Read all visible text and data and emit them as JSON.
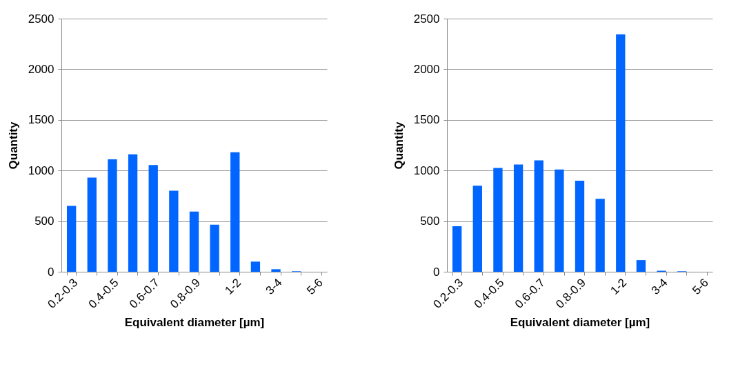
{
  "chart_data": [
    {
      "type": "bar",
      "categories": [
        "0.2-0.3",
        null,
        "0.4-0.5",
        null,
        "0.6-0.7",
        null,
        "0.8-0.9",
        null,
        "1-2",
        null,
        "3-4",
        null,
        "5-6"
      ],
      "series": [
        {
          "color": "#0066ff",
          "values": [
            650,
            930,
            1110,
            1160,
            1055,
            800,
            595,
            465,
            1180,
            100,
            25,
            5,
            0
          ]
        }
      ],
      "xlabel": "Equivalent diameter [µm]",
      "ylabel": "Quantity",
      "ylim": [
        0,
        2500
      ],
      "yticks": [
        0,
        500,
        1000,
        1500,
        2000,
        2500
      ],
      "grid": "y"
    },
    {
      "type": "bar",
      "categories": [
        "0.2-0.3",
        null,
        "0.4-0.5",
        null,
        "0.6-0.7",
        null,
        "0.8-0.9",
        null,
        "1-2",
        null,
        "3-4",
        null,
        "5-6"
      ],
      "series": [
        {
          "color": "#0066ff",
          "values": [
            450,
            850,
            1025,
            1060,
            1100,
            1010,
            900,
            720,
            2345,
            115,
            10,
            5,
            0
          ]
        }
      ],
      "xlabel": "Equivalent diameter [µm]",
      "ylabel": "Quantity",
      "ylim": [
        0,
        2500
      ],
      "yticks": [
        0,
        500,
        1000,
        1500,
        2000,
        2500
      ],
      "grid": "y"
    }
  ]
}
